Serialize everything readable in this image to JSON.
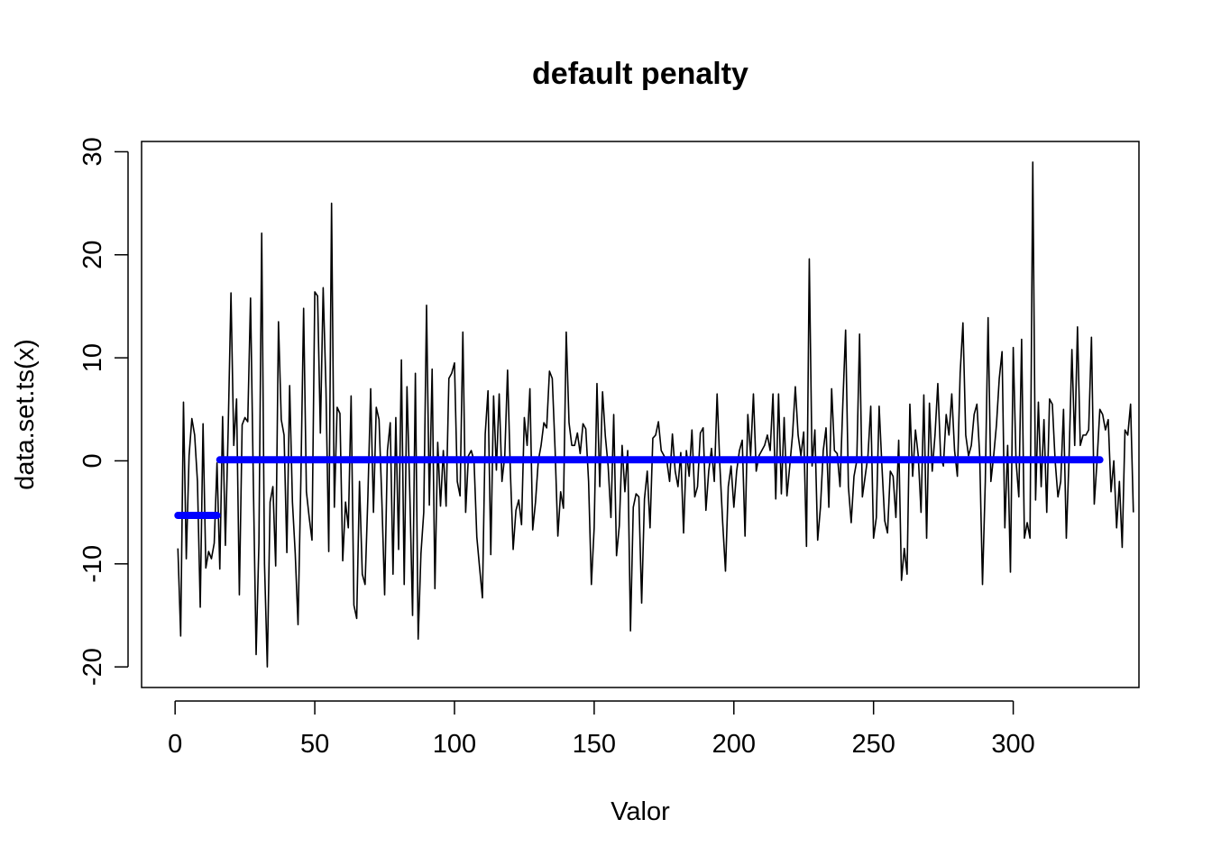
{
  "chart_data": {
    "type": "line",
    "title": "default penalty",
    "xlabel": "Valor",
    "ylabel": "data.set.ts(x)",
    "xlim": [
      -12,
      345
    ],
    "ylim": [
      -22,
      31
    ],
    "x_ticks": [
      0,
      50,
      100,
      150,
      200,
      250,
      300
    ],
    "y_ticks": [
      -20,
      -10,
      0,
      10,
      20,
      30
    ],
    "x_tick_labels": [
      "0",
      "50",
      "100",
      "150",
      "200",
      "250",
      "300"
    ],
    "y_tick_labels": [
      "-20",
      "-10",
      "0",
      "10",
      "20",
      "30"
    ],
    "grid": false,
    "legend": "none",
    "series_color": "#000000",
    "segment_color": "#0000ff",
    "series": [
      {
        "x_start": 1,
        "x_step": 1,
        "values": [
          -8.5,
          -17,
          5.7,
          -9.5,
          0.5,
          4.1,
          2.5,
          -2.0,
          -14.2,
          3.6,
          -10.4,
          -8.8,
          -9.5,
          -8.0,
          -0.2,
          -10.5,
          4.3,
          -8.2,
          3.1,
          16.3,
          1.5,
          6.0,
          -13.0,
          3.5,
          4.2,
          3.8,
          15.8,
          -2.0,
          -18.8,
          -8.0,
          22.1,
          -10.0,
          -20.0,
          -4.0,
          -2.5,
          -10.2,
          13.5,
          4.0,
          2.5,
          -8.9,
          7.3,
          -4.0,
          -9.0,
          -15.9,
          -2.0,
          14.8,
          -3.0,
          -5.5,
          -7.7,
          16.4,
          16.0,
          2.7,
          16.8,
          7.0,
          -8.8,
          25.0,
          -4.5,
          5.2,
          4.6,
          -9.7,
          -4.0,
          -6.5,
          6.3,
          -14.0,
          -15.3,
          -2.0,
          -11.0,
          -12.0,
          -3.5,
          7.0,
          -5.0,
          5.2,
          4.0,
          -3.8,
          -13.0,
          1.0,
          3.7,
          -11.0,
          4.2,
          -8.6,
          9.8,
          -12.0,
          7.2,
          -3.0,
          -15.0,
          8.5,
          -17.3,
          -9.0,
          -5.0,
          15.1,
          -4.3,
          8.9,
          -12.4,
          1.8,
          -4.4,
          1.0,
          -4.4,
          8.0,
          8.5,
          9.5,
          -2.0,
          -3.4,
          12.5,
          -5.0,
          0.5,
          1.0,
          0.0,
          -7.4,
          -10.4,
          -13.3,
          2.6,
          6.8,
          -9.1,
          6.3,
          -0.9,
          6.5,
          -2.0,
          0.5,
          8.8,
          -1.0,
          -8.6,
          -4.8,
          -3.8,
          -6.2,
          4.2,
          1.5,
          7.0,
          -6.7,
          -4.0,
          0.0,
          1.5,
          3.7,
          3.2,
          8.7,
          8.0,
          1.2,
          -7.3,
          -3.0,
          -4.6,
          12.5,
          3.7,
          1.5,
          1.5,
          2.7,
          0.7,
          3.6,
          3.1,
          -2.0,
          -12.0,
          -6.5,
          7.5,
          -2.5,
          6.7,
          2.4,
          -0.5,
          -5.5,
          4.5,
          -9.2,
          -6.3,
          1.5,
          -3.0,
          1.0,
          -16.5,
          -4.5,
          -3.2,
          -3.5,
          -13.8,
          -3.7,
          -1.0,
          -6.5,
          2.2,
          2.5,
          3.8,
          1.0,
          0.5,
          0.0,
          -2.0,
          2.6,
          -1.0,
          -2.5,
          0.8,
          -7.0,
          1.0,
          -1.5,
          3.0,
          -3.5,
          -2.5,
          2.7,
          3.2,
          -4.8,
          -1.0,
          1.2,
          -2.0,
          6.5,
          -0.5,
          -6.0,
          -10.7,
          -2.5,
          -0.5,
          -4.5,
          -1.0,
          1.0,
          2.0,
          -7.3,
          4.5,
          0.5,
          6.5,
          -1.0,
          0.5,
          1.0,
          1.5,
          2.5,
          1.0,
          6.5,
          -3.7,
          6.5,
          -3.2,
          4.2,
          -3.4,
          -0.5,
          2.5,
          7.2,
          2.5,
          0.5,
          2.8,
          -8.3,
          19.6,
          -0.5,
          3.0,
          -7.7,
          -4.5,
          1.0,
          3.2,
          -4.5,
          7.0,
          1.0,
          0.7,
          -2.5,
          5.5,
          12.7,
          -2.5,
          -6.0,
          -1.5,
          0.0,
          12.3,
          -3.5,
          -1.5,
          0.5,
          5.3,
          -7.5,
          -5.5,
          5.3,
          -0.5,
          -5.8,
          -7.0,
          -1.0,
          -1.5,
          -5.5,
          2.0,
          -11.6,
          -8.5,
          -11.0,
          5.5,
          -1.5,
          3.0,
          0.5,
          -5.0,
          6.4,
          -7.5,
          5.6,
          -1.0,
          2.5,
          7.5,
          0.5,
          -0.5,
          4.5,
          2.5,
          6.5,
          1.0,
          -1.5,
          8.5,
          13.4,
          2.5,
          0.5,
          1.5,
          4.5,
          5.5,
          0.5,
          -12.0,
          -2.0,
          13.9,
          -2.0,
          0.5,
          3.5,
          8.0,
          10.6,
          -6.5,
          1.5,
          -10.8,
          11.0,
          0.0,
          -3.5,
          11.8,
          -7.5,
          -6.0,
          -7.5,
          29.0,
          -3.8,
          5.7,
          -2.5,
          4.0,
          -5.0,
          6.0,
          5.5,
          0.0,
          -3.5,
          -2.0,
          5.0,
          -7.5,
          0.5,
          10.8,
          1.5,
          13.0,
          1.5,
          2.5,
          2.5,
          3.0,
          12.0,
          -4.2,
          0.0,
          5.0,
          4.5,
          3.0,
          4.0,
          -3.0,
          0.0,
          -6.5,
          -2.0,
          -8.4,
          3.0,
          2.5,
          5.5,
          -5.0
        ]
      }
    ],
    "segments": [
      {
        "x_start": 1,
        "x_end": 15,
        "value": -5.3
      },
      {
        "x_start": 16,
        "x_end": 331,
        "value": 0.1
      }
    ]
  }
}
